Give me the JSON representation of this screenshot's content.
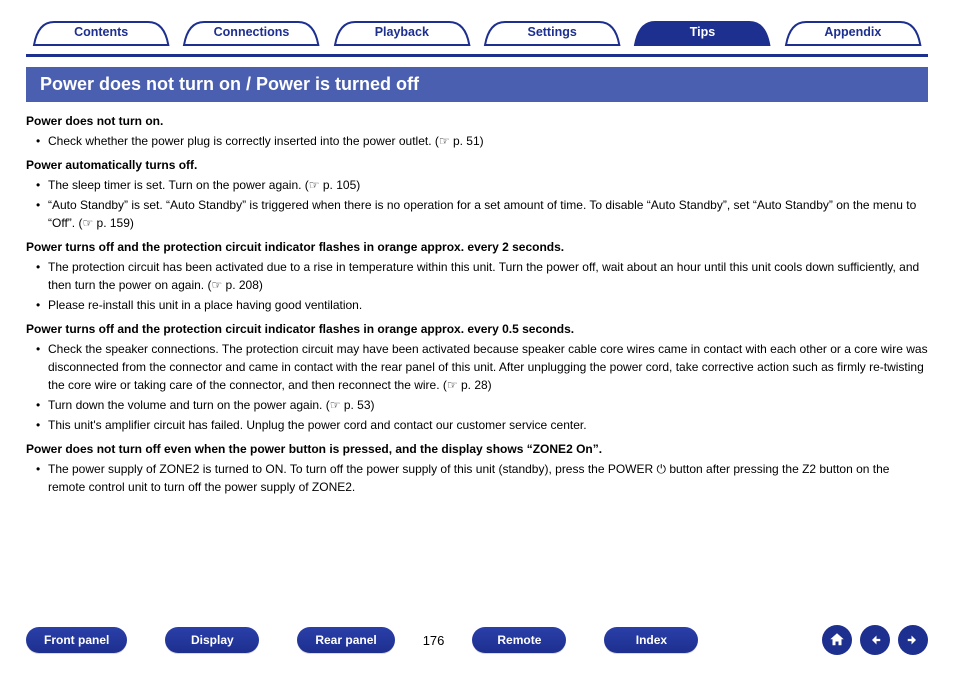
{
  "colors": {
    "brand": "#1d2f8f",
    "bar": "#4a5fb0",
    "tab_fill": "#ffffff",
    "tab_stroke": "#1d2f8f"
  },
  "tabs": [
    {
      "label": "Contents",
      "active": false
    },
    {
      "label": "Connections",
      "active": false
    },
    {
      "label": "Playback",
      "active": false
    },
    {
      "label": "Settings",
      "active": false
    },
    {
      "label": "Tips",
      "active": true
    },
    {
      "label": "Appendix",
      "active": false
    }
  ],
  "section_title": "Power does not turn on / Power is turned off",
  "groups": [
    {
      "heading": "Power does not turn on.",
      "items": [
        "Check whether the power plug is correctly inserted into the power outlet.  (☞ p. 51)"
      ]
    },
    {
      "heading": "Power automatically turns off.",
      "items": [
        "The sleep timer is set. Turn on the power again.  (☞ p. 105)",
        "“Auto Standby” is set. “Auto Standby” is triggered when there is no operation for a set amount of time. To disable “Auto Standby”, set “Auto Standby” on the menu to “Off”.  (☞ p. 159)"
      ]
    },
    {
      "heading": "Power turns off and the protection circuit indicator flashes in orange approx. every 2 seconds.",
      "items": [
        "The protection circuit has been activated due to a rise in temperature within this unit. Turn the power off, wait about an hour until this unit cools down sufficiently, and then turn the power on again.  (☞ p. 208)",
        "Please re-install this unit in a place having good ventilation."
      ]
    },
    {
      "heading": "Power turns off and the protection circuit indicator flashes in orange approx. every 0.5 seconds.",
      "items": [
        "Check the speaker connections. The protection circuit may have been activated because speaker cable core wires came in contact with each other or a core wire was disconnected from the connector and came in contact with the rear panel of this unit. After unplugging the power cord, take corrective action such as firmly re-twisting the core wire or taking care of the connector, and then reconnect the wire.  (☞ p. 28)",
        "Turn down the volume and turn on the power again.  (☞ p. 53)",
        "This unit's amplifier circuit has failed. Unplug the power cord and contact our customer service center."
      ]
    },
    {
      "heading": "Power does not turn off even when the power button is pressed, and the display shows “ZONE2 On”.",
      "items": [
        "The power supply of ZONE2 is turned to ON. To turn off the power supply of this unit (standby), press the POWER ⏻ button after pressing the Z2 button on the remote control unit to turn off the power supply of ZONE2."
      ]
    }
  ],
  "bottom_nav": {
    "buttons": [
      "Front panel",
      "Display",
      "Rear panel"
    ],
    "page_number": "176",
    "buttons_after": [
      "Remote",
      "Index"
    ],
    "icons": [
      "home-icon",
      "arrow-left-icon",
      "arrow-right-icon"
    ]
  }
}
